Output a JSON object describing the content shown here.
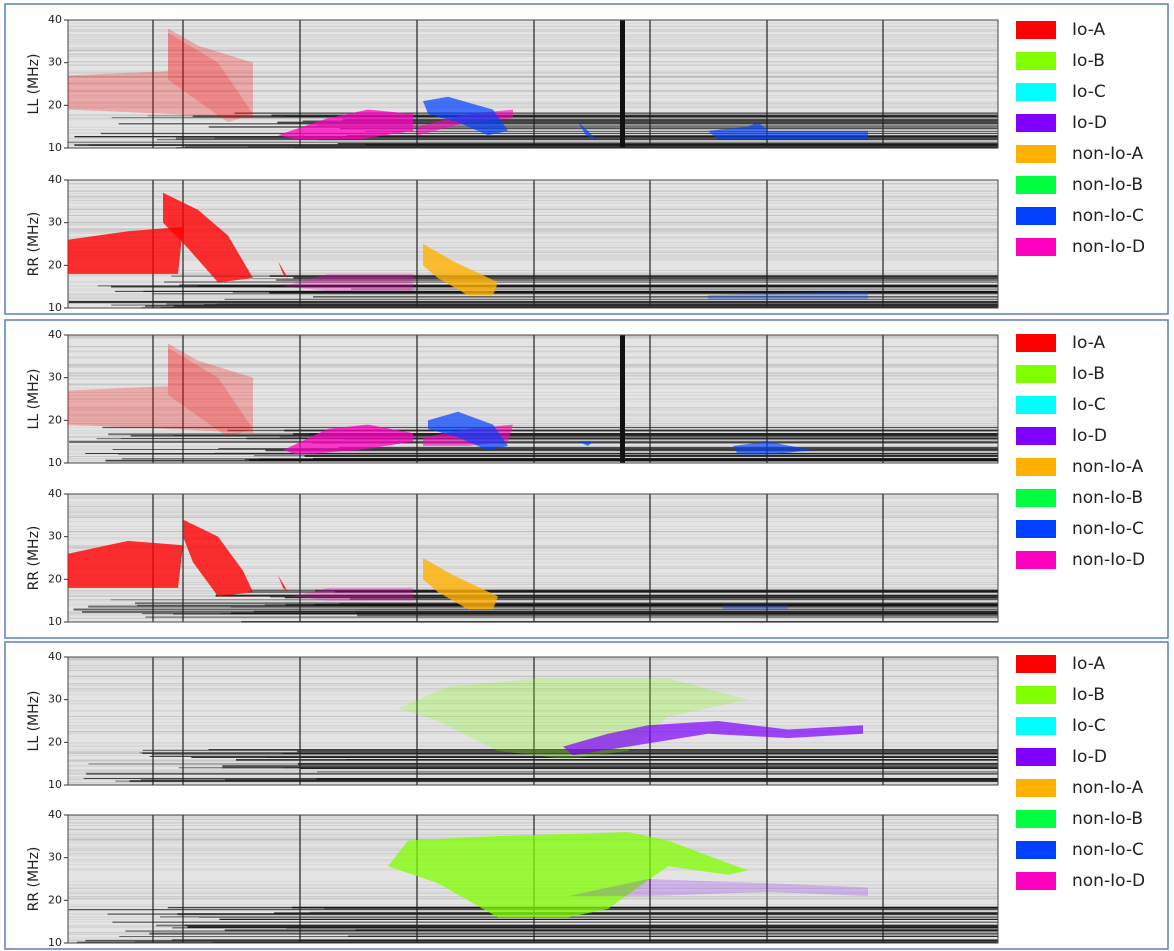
{
  "panels": [
    {
      "plots": [
        {
          "ylabel": "LL (MHz)",
          "yticks": [
            10,
            20,
            30,
            40
          ]
        },
        {
          "ylabel": "RR (MHz)",
          "yticks": [
            10,
            20,
            30,
            40
          ]
        }
      ],
      "legend": [
        {
          "label": "Io-A",
          "color": "#ff0000"
        },
        {
          "label": "Io-B",
          "color": "#80ff00"
        },
        {
          "label": "Io-C",
          "color": "#00ffff"
        },
        {
          "label": "Io-D",
          "color": "#8000ff"
        },
        {
          "label": "non-Io-A",
          "color": "#ffb000"
        },
        {
          "label": "non-Io-B",
          "color": "#00ff40"
        },
        {
          "label": "non-Io-C",
          "color": "#0040ff"
        },
        {
          "label": "non-Io-D",
          "color": "#ff00c0"
        }
      ]
    },
    {
      "plots": [
        {
          "ylabel": "LL (MHz)",
          "yticks": [
            10,
            20,
            30,
            40
          ]
        },
        {
          "ylabel": "RR (MHz)",
          "yticks": [
            10,
            20,
            30,
            40
          ]
        }
      ],
      "legend": [
        {
          "label": "Io-A",
          "color": "#ff0000"
        },
        {
          "label": "Io-B",
          "color": "#80ff00"
        },
        {
          "label": "Io-C",
          "color": "#00ffff"
        },
        {
          "label": "Io-D",
          "color": "#8000ff"
        },
        {
          "label": "non-Io-A",
          "color": "#ffb000"
        },
        {
          "label": "non-Io-B",
          "color": "#00ff40"
        },
        {
          "label": "non-Io-C",
          "color": "#0040ff"
        },
        {
          "label": "non-Io-D",
          "color": "#ff00c0"
        }
      ]
    },
    {
      "plots": [
        {
          "ylabel": "LL (MHz)",
          "yticks": [
            10,
            20,
            30,
            40
          ]
        },
        {
          "ylabel": "RR (MHz)",
          "yticks": [
            10,
            20,
            30,
            40
          ]
        }
      ],
      "legend": [
        {
          "label": "Io-A",
          "color": "#ff0000"
        },
        {
          "label": "Io-B",
          "color": "#80ff00"
        },
        {
          "label": "Io-C",
          "color": "#00ffff"
        },
        {
          "label": "Io-D",
          "color": "#8000ff"
        },
        {
          "label": "non-Io-A",
          "color": "#ffb000"
        },
        {
          "label": "non-Io-B",
          "color": "#00ff40"
        },
        {
          "label": "non-Io-C",
          "color": "#0040ff"
        },
        {
          "label": "non-Io-D",
          "color": "#ff00c0"
        }
      ]
    }
  ]
}
